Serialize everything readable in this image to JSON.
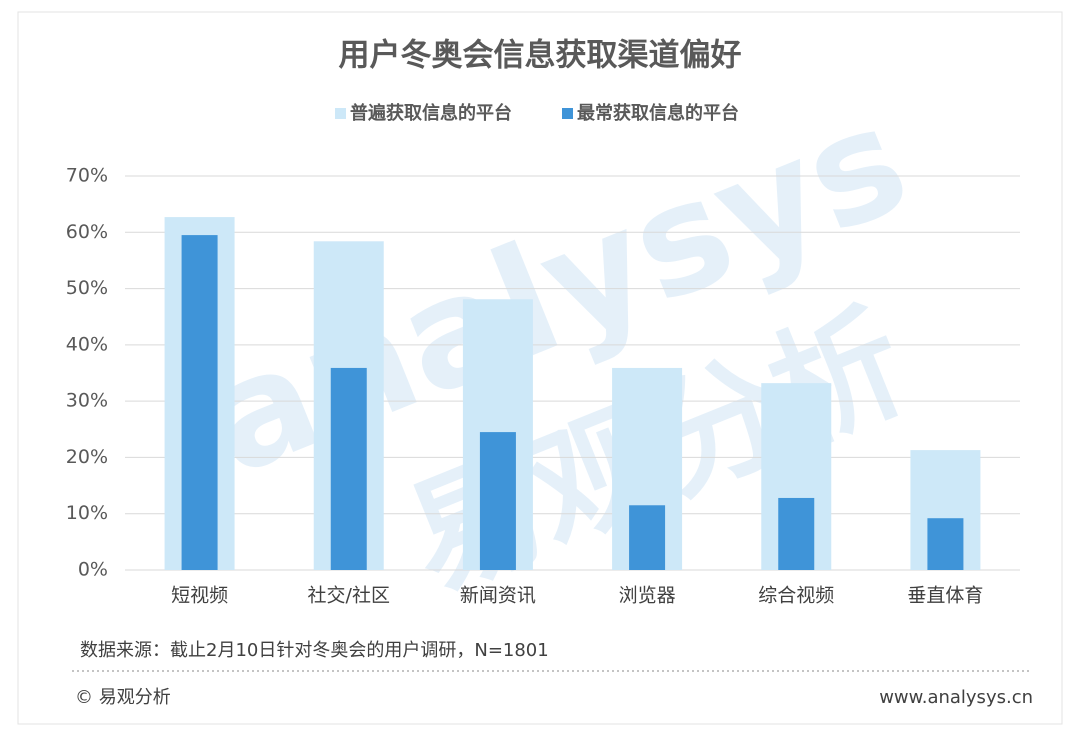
{
  "chart_data": {
    "type": "bar",
    "title": "用户冬奥会信息获取渠道偏好",
    "categories": [
      "短视频",
      "社交/社区",
      "新闻资讯",
      "浏览器",
      "综合视频",
      "垂直体育"
    ],
    "series": [
      {
        "name": "普遍获取信息的平台",
        "color": "#cde8f8",
        "values": [
          62.7,
          58.4,
          48.1,
          35.9,
          33.2,
          21.3
        ]
      },
      {
        "name": "最常获取信息的平台",
        "color": "#3f94d8",
        "values": [
          59.5,
          35.9,
          24.5,
          11.5,
          12.8,
          9.2
        ]
      }
    ],
    "ylim": [
      0,
      70
    ],
    "yticks": [
      {
        "value": 0,
        "label": "0%"
      },
      {
        "value": 10,
        "label": "10%"
      },
      {
        "value": 20,
        "label": "20%"
      },
      {
        "value": 30,
        "label": "30%"
      },
      {
        "value": 40,
        "label": "40%"
      },
      {
        "value": 50,
        "label": "50%"
      },
      {
        "value": 60,
        "label": "60%"
      },
      {
        "value": 70,
        "label": "70%"
      }
    ],
    "grid": true,
    "legend": "top",
    "source": "数据来源：截止2月10日针对冬奥会的用户调研，N=1801",
    "copyright": "© 易观分析",
    "website": "www.analysys.cn",
    "watermark": [
      "analysys",
      "易观分析"
    ]
  }
}
